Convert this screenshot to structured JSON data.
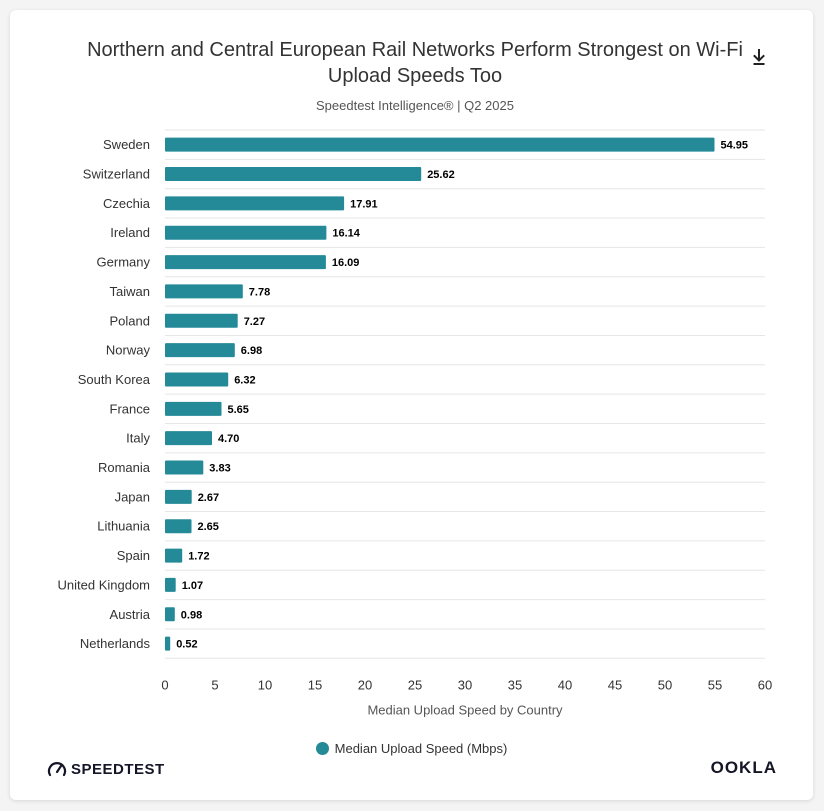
{
  "header": {
    "title": "Northern and Central European Rail Networks Perform Strongest on Wi-Fi Upload Speeds Too",
    "subtitle": "Speedtest Intelligence® | Q2 2025",
    "download_icon": "download-icon"
  },
  "chart_data": {
    "type": "bar",
    "orientation": "horizontal",
    "title": "Northern and Central European Rail Networks Perform Strongest on Wi-Fi Upload Speeds Too",
    "subtitle": "Speedtest Intelligence® | Q2 2025",
    "categories": [
      "Sweden",
      "Switzerland",
      "Czechia",
      "Ireland",
      "Germany",
      "Taiwan",
      "Poland",
      "Norway",
      "South Korea",
      "France",
      "Italy",
      "Romania",
      "Japan",
      "Lithuania",
      "Spain",
      "United Kingdom",
      "Austria",
      "Netherlands"
    ],
    "series": [
      {
        "name": "Median Upload Speed (Mbps)",
        "values": [
          54.95,
          25.62,
          17.91,
          16.14,
          16.09,
          7.78,
          7.27,
          6.98,
          6.32,
          5.65,
          4.7,
          3.83,
          2.67,
          2.65,
          1.72,
          1.07,
          0.98,
          0.52
        ],
        "labels": [
          "54.95",
          "25.62",
          "17.91",
          "16.14",
          "16.09",
          "7.78",
          "7.27",
          "6.98",
          "6.32",
          "5.65",
          "4.70",
          "3.83",
          "2.67",
          "2.65",
          "1.72",
          "1.07",
          "0.98",
          "0.52"
        ]
      }
    ],
    "xlabel": "Median Upload Speed by Country",
    "ylabel": "",
    "xlim": [
      0,
      60
    ],
    "xticks": [
      0,
      5,
      10,
      15,
      20,
      25,
      30,
      35,
      40,
      45,
      50,
      55,
      60
    ],
    "grid": "horizontal separators",
    "legend_position": "bottom-center"
  },
  "legend": {
    "label": "Median Upload Speed (Mbps)"
  },
  "colors": {
    "bar": "#248a97",
    "grid": "#e6e6e6",
    "text": "#333333"
  },
  "branding": {
    "left": "SPEEDTEST",
    "right": "OOKLA"
  }
}
